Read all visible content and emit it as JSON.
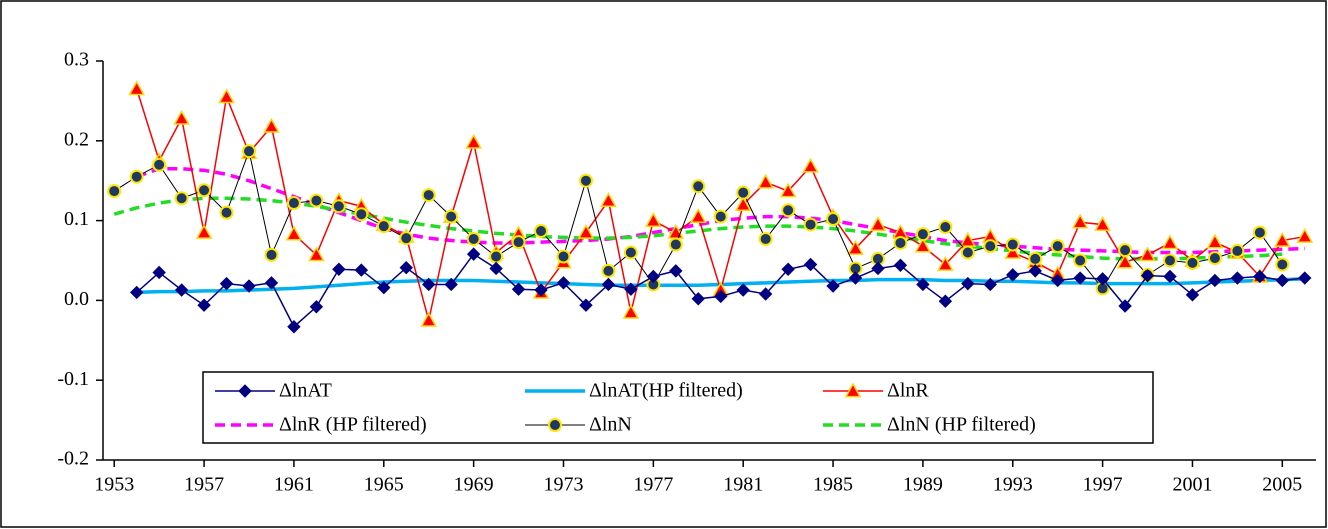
{
  "chart_data": {
    "type": "line",
    "x": [
      1953,
      1954,
      1955,
      1956,
      1957,
      1958,
      1959,
      1960,
      1961,
      1962,
      1963,
      1964,
      1965,
      1966,
      1967,
      1968,
      1969,
      1970,
      1971,
      1972,
      1973,
      1974,
      1975,
      1976,
      1977,
      1978,
      1979,
      1980,
      1981,
      1982,
      1983,
      1984,
      1985,
      1986,
      1987,
      1988,
      1989,
      1990,
      1991,
      1992,
      1993,
      1994,
      1995,
      1996,
      1997,
      1998,
      1999,
      2000,
      2001,
      2002,
      2003,
      2004,
      2005,
      2006
    ],
    "xlim": [
      1952.5,
      2006.5
    ],
    "xticks": [
      1953,
      1957,
      1961,
      1965,
      1969,
      1973,
      1977,
      1981,
      1985,
      1989,
      1993,
      1997,
      2001,
      2005
    ],
    "ylim": [
      -0.2,
      0.3
    ],
    "yticks": [
      -0.2,
      -0.1,
      {
        "value": 0,
        "label": "0.0"
      },
      0.1,
      0.2,
      0.3
    ],
    "legend": "lower left",
    "series": [
      {
        "name": "ΔlnAT",
        "color": "#000080",
        "marker": "diamond",
        "dash": "solid",
        "width": 1.5,
        "values": [
          null,
          0.01,
          0.035,
          0.013,
          -0.006,
          0.021,
          0.018,
          0.022,
          -0.033,
          -0.008,
          0.039,
          0.038,
          0.016,
          0.041,
          0.02,
          0.02,
          0.058,
          0.04,
          0.014,
          0.013,
          0.022,
          -0.006,
          0.02,
          0.014,
          0.03,
          0.037,
          0.002,
          0.005,
          0.013,
          0.008,
          0.039,
          0.045,
          0.018,
          0.028,
          0.04,
          0.044,
          0.02,
          -0.001,
          0.021,
          0.02,
          0.032,
          0.037,
          0.025,
          0.028,
          0.027,
          -0.007,
          0.031,
          0.03,
          0.007,
          0.025,
          0.028,
          0.03,
          0.025,
          0.028
        ]
      },
      {
        "name": "ΔlnAT(HP filtered)",
        "color": "#00B0F0",
        "marker": "none",
        "dash": "solid",
        "width": 3.5,
        "values": [
          null,
          0.01,
          0.011,
          0.011,
          0.012,
          0.012,
          0.013,
          0.014,
          0.015,
          0.017,
          0.019,
          0.021,
          0.023,
          0.024,
          0.025,
          0.025,
          0.025,
          0.024,
          0.023,
          0.022,
          0.021,
          0.02,
          0.019,
          0.019,
          0.019,
          0.019,
          0.019,
          0.02,
          0.021,
          0.022,
          0.023,
          0.024,
          0.025,
          0.025,
          0.026,
          0.026,
          0.026,
          0.025,
          0.025,
          0.024,
          0.024,
          0.023,
          0.022,
          0.022,
          0.021,
          0.021,
          0.021,
          0.021,
          0.022,
          0.023,
          0.024,
          0.025,
          0.026,
          0.027
        ]
      },
      {
        "name": "ΔlnR",
        "color": "#FF0000",
        "marker": "triangle",
        "dash": "solid",
        "width": 1.5,
        "values": [
          null,
          0.265,
          0.175,
          0.228,
          0.085,
          0.255,
          0.185,
          0.218,
          0.083,
          0.057,
          0.125,
          0.118,
          0.095,
          0.08,
          -0.025,
          0.105,
          0.198,
          0.06,
          0.083,
          0.01,
          0.048,
          0.085,
          0.125,
          -0.015,
          0.1,
          0.085,
          0.105,
          0.013,
          0.12,
          0.148,
          0.137,
          0.168,
          0.105,
          0.065,
          0.095,
          0.085,
          0.068,
          0.045,
          0.075,
          0.08,
          0.06,
          0.048,
          0.033,
          0.098,
          0.095,
          0.048,
          0.057,
          0.072,
          0.05,
          0.073,
          0.06,
          0.03,
          0.075,
          0.08
        ]
      },
      {
        "name": "ΔlnR (HP filtered)",
        "color": "#FF00FF",
        "marker": "none",
        "dash": "dashed",
        "width": 3.5,
        "values": [
          null,
          0.155,
          0.165,
          0.165,
          0.163,
          0.158,
          0.15,
          0.14,
          0.13,
          0.12,
          0.11,
          0.1,
          0.09,
          0.083,
          0.078,
          0.075,
          0.073,
          0.072,
          0.072,
          0.073,
          0.074,
          0.075,
          0.077,
          0.08,
          0.085,
          0.09,
          0.095,
          0.1,
          0.103,
          0.105,
          0.105,
          0.103,
          0.1,
          0.095,
          0.09,
          0.085,
          0.08,
          0.075,
          0.072,
          0.07,
          0.068,
          0.066,
          0.064,
          0.063,
          0.062,
          0.061,
          0.06,
          0.06,
          0.06,
          0.061,
          0.062,
          0.063,
          0.064,
          0.065
        ]
      },
      {
        "name": "ΔlnN",
        "color": "#000000",
        "marker": "circle",
        "dash": "solid",
        "width": 1,
        "values": [
          0.137,
          0.155,
          0.17,
          0.128,
          0.138,
          0.11,
          0.187,
          0.057,
          0.122,
          0.125,
          0.118,
          0.108,
          0.093,
          0.078,
          0.132,
          0.105,
          0.077,
          0.055,
          0.073,
          0.087,
          0.055,
          0.15,
          0.037,
          0.06,
          0.02,
          0.07,
          0.143,
          0.105,
          0.135,
          0.077,
          0.113,
          0.095,
          0.102,
          0.04,
          0.052,
          0.072,
          0.083,
          0.092,
          0.06,
          0.068,
          0.07,
          0.052,
          0.068,
          0.05,
          0.015,
          0.063,
          0.032,
          0.05,
          0.047,
          0.053,
          0.062,
          0.085,
          0.045,
          null
        ]
      },
      {
        "name": "ΔlnN (HP filtered)",
        "color": "#22DD22",
        "marker": "none",
        "dash": "dashed",
        "width": 3.5,
        "values": [
          0.108,
          0.116,
          0.122,
          0.126,
          0.128,
          0.128,
          0.127,
          0.125,
          0.122,
          0.118,
          0.113,
          0.108,
          0.103,
          0.098,
          0.094,
          0.09,
          0.087,
          0.084,
          0.082,
          0.08,
          0.079,
          0.078,
          0.078,
          0.079,
          0.081,
          0.084,
          0.087,
          0.09,
          0.092,
          0.093,
          0.093,
          0.092,
          0.09,
          0.087,
          0.083,
          0.079,
          0.075,
          0.071,
          0.068,
          0.065,
          0.062,
          0.059,
          0.057,
          0.055,
          0.053,
          0.052,
          0.052,
          0.052,
          0.053,
          0.054,
          0.055,
          0.056,
          0.058,
          null
        ]
      }
    ]
  }
}
